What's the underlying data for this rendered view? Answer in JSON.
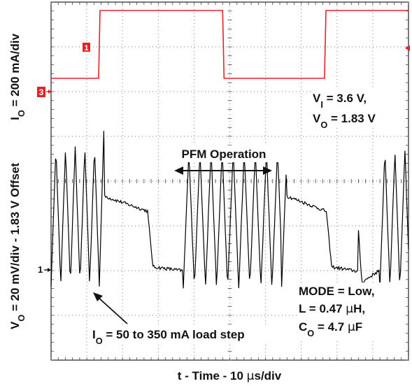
{
  "chart_data": {
    "type": "line",
    "title": "",
    "xlabel": {
      "main": "t - Time - 10 ",
      "mu": "μ",
      "unit": "s/div"
    },
    "ylabel_top": {
      "pre": "I",
      "sub": "O",
      "post": " = 200 mA/div"
    },
    "ylabel_bottom": {
      "pre": "V",
      "sub": "O",
      "post": " = 20 mV/div - 1.83 V Offset"
    },
    "grid": true,
    "x_divisions": 10,
    "y_divisions": 8,
    "x_range_us": [
      0,
      100
    ],
    "channel_markers": {
      "ch1_top": "1",
      "ch3": "3",
      "ch1_bottom": "1"
    },
    "annotations": {
      "vi": {
        "pre": "V",
        "sub": "I",
        "post": " = 3.6 V,"
      },
      "vo": {
        "pre": "V",
        "sub": "O",
        "post": " = 1.83 V"
      },
      "pfm": "PFM Operation",
      "mode": "MODE = Low,",
      "inductor": {
        "pre": "L = 0.47 ",
        "mu": "μ",
        "post": "H,"
      },
      "cap": {
        "pre": "C",
        "sub": "O",
        "post": " = 4.7 ",
        "mu": "μ",
        "post2": "F"
      },
      "load": {
        "pre": "I",
        "sub": "O",
        "post": " = 50 to 350 mA load step"
      }
    },
    "series": [
      {
        "name": "",
        "color": "#e8202a",
        "unit": "mA",
        "points": [
          [
            0,
            50
          ],
          [
            13.3,
            50
          ],
          [
            13.7,
            350
          ],
          [
            48,
            350
          ],
          [
            48.4,
            50
          ],
          [
            76.5,
            50
          ],
          [
            76.9,
            350
          ],
          [
            110,
            350
          ]
        ]
      },
      {
        "name": "",
        "color": "#000000",
        "unit": "mV",
        "x_step_us": 0.5,
        "waveform_description": "PFM ripple bursts alternating with load-step plateaus"
      }
    ]
  }
}
